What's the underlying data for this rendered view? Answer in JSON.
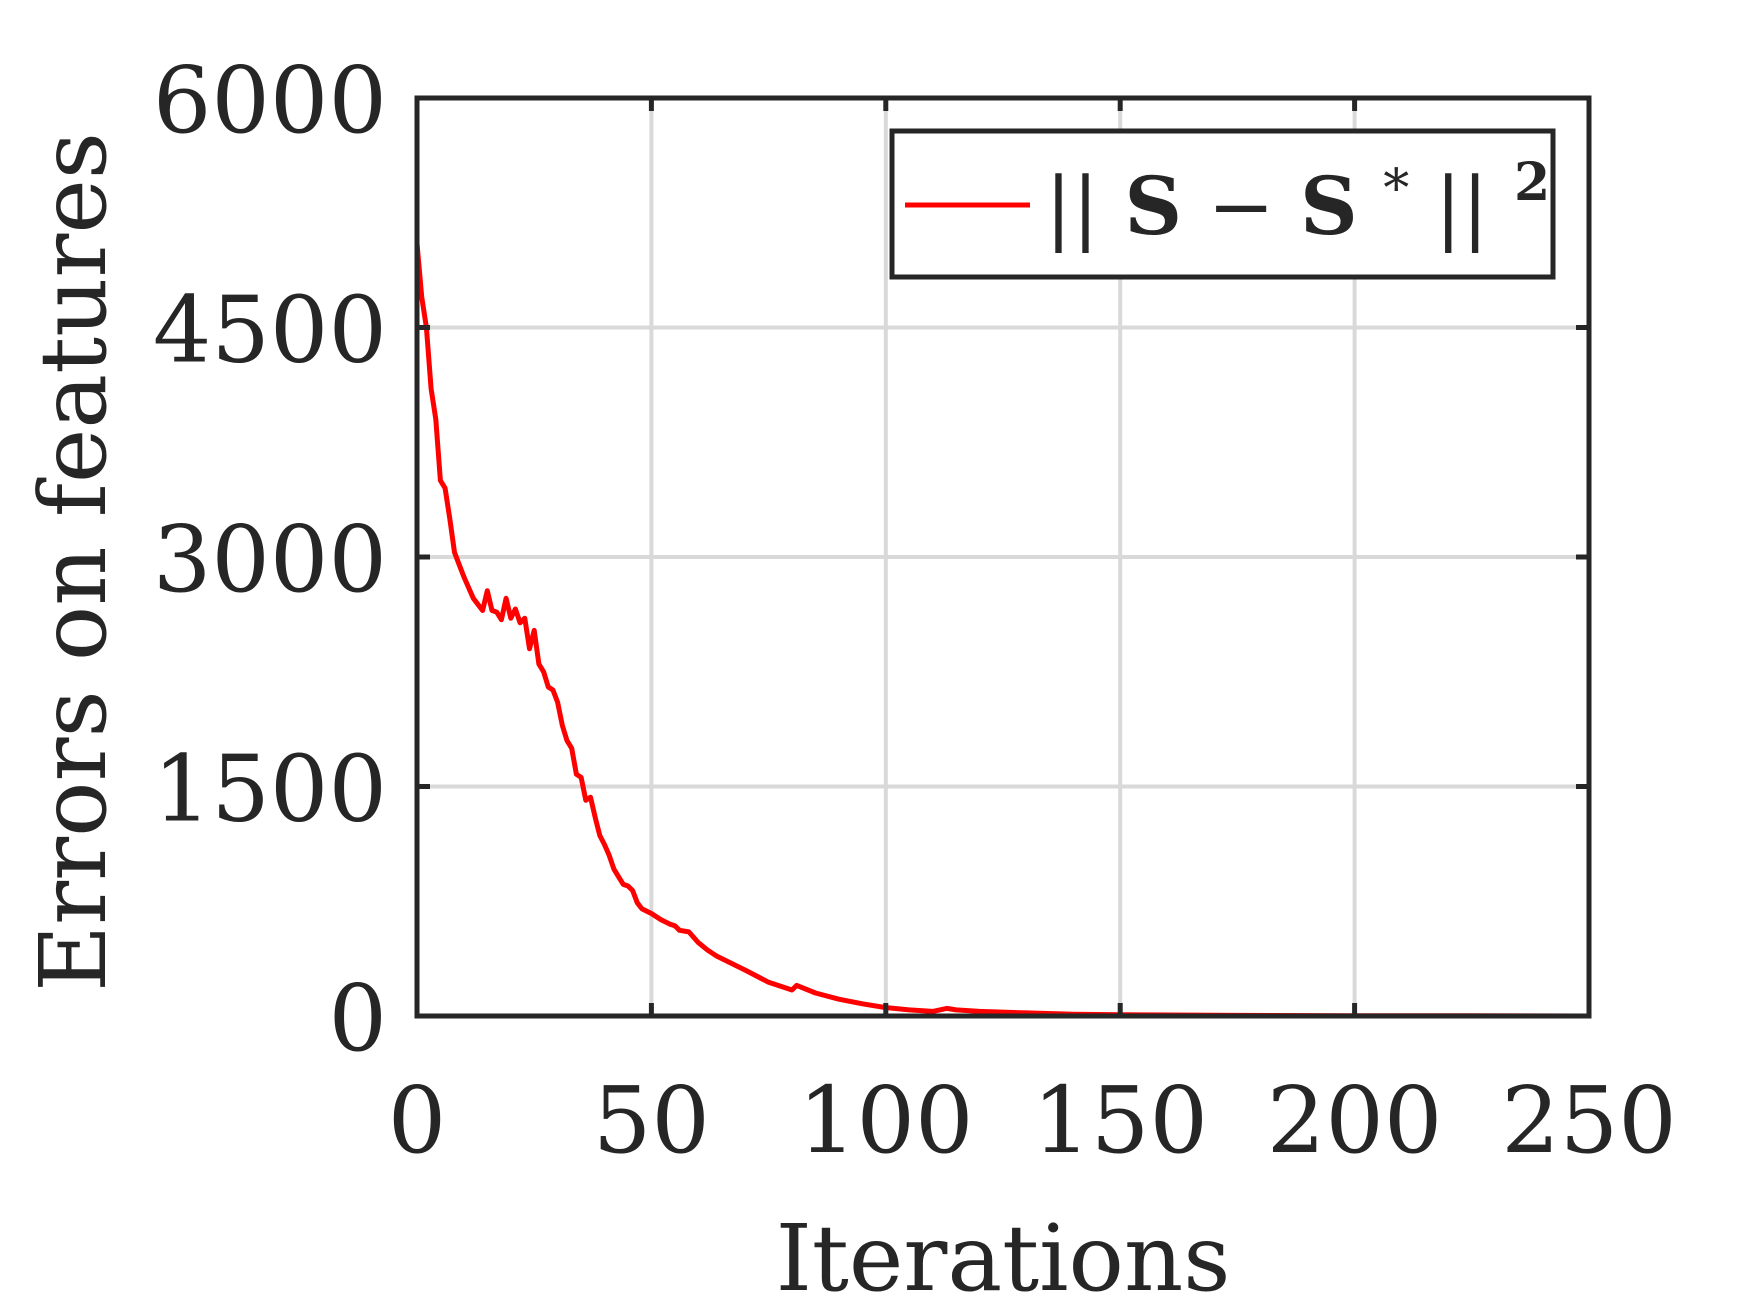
{
  "chart_data": {
    "type": "line",
    "title": "",
    "xlabel": "Iterations",
    "ylabel": "Errors on features",
    "xlim": [
      0,
      250
    ],
    "ylim": [
      0,
      6000
    ],
    "xticks": [
      0,
      50,
      100,
      150,
      200,
      250
    ],
    "yticks": [
      0,
      1500,
      3000,
      4500,
      6000
    ],
    "xtick_labels": [
      "0",
      "50",
      "100",
      "150",
      "200",
      "250"
    ],
    "ytick_labels": [
      "0",
      "1500",
      "3000",
      "4500",
      "6000"
    ],
    "grid": true,
    "legend": {
      "position": "top-right",
      "entries": [
        {
          "norm_open": "||",
          "base": "S",
          "operator": " − ",
          "term": "S",
          "star": "*",
          "norm_close": "||",
          "power": "2"
        }
      ]
    },
    "series": [
      {
        "color": "#ff0000",
        "x": [
          0,
          1,
          2,
          3,
          4,
          5,
          6,
          7,
          8,
          9,
          10,
          12,
          14,
          15,
          16,
          17,
          18,
          19,
          20,
          21,
          22,
          23,
          24,
          25,
          26,
          27,
          28,
          29,
          30,
          31,
          32,
          33,
          34,
          35,
          36,
          37,
          38,
          39,
          40,
          41,
          42,
          43,
          44,
          45,
          46,
          47,
          48,
          50,
          52,
          54,
          55,
          56,
          58,
          60,
          62,
          64,
          66,
          70,
          75,
          80,
          81,
          85,
          90,
          95,
          100,
          105,
          110,
          113,
          115,
          120,
          130,
          140,
          150,
          175,
          200,
          225,
          250
        ],
        "y": [
          5050,
          4700,
          4500,
          4100,
          3900,
          3500,
          3450,
          3250,
          3030,
          2950,
          2870,
          2730,
          2650,
          2780,
          2650,
          2640,
          2590,
          2730,
          2600,
          2660,
          2570,
          2600,
          2400,
          2520,
          2300,
          2250,
          2150,
          2130,
          2050,
          1900,
          1800,
          1750,
          1580,
          1560,
          1410,
          1430,
          1300,
          1180,
          1120,
          1050,
          960,
          910,
          860,
          850,
          820,
          740,
          700,
          670,
          630,
          600,
          590,
          560,
          550,
          480,
          430,
          390,
          360,
          300,
          220,
          170,
          200,
          150,
          110,
          80,
          55,
          40,
          30,
          50,
          40,
          30,
          20,
          12,
          8,
          4,
          2,
          1,
          0
        ]
      }
    ]
  }
}
